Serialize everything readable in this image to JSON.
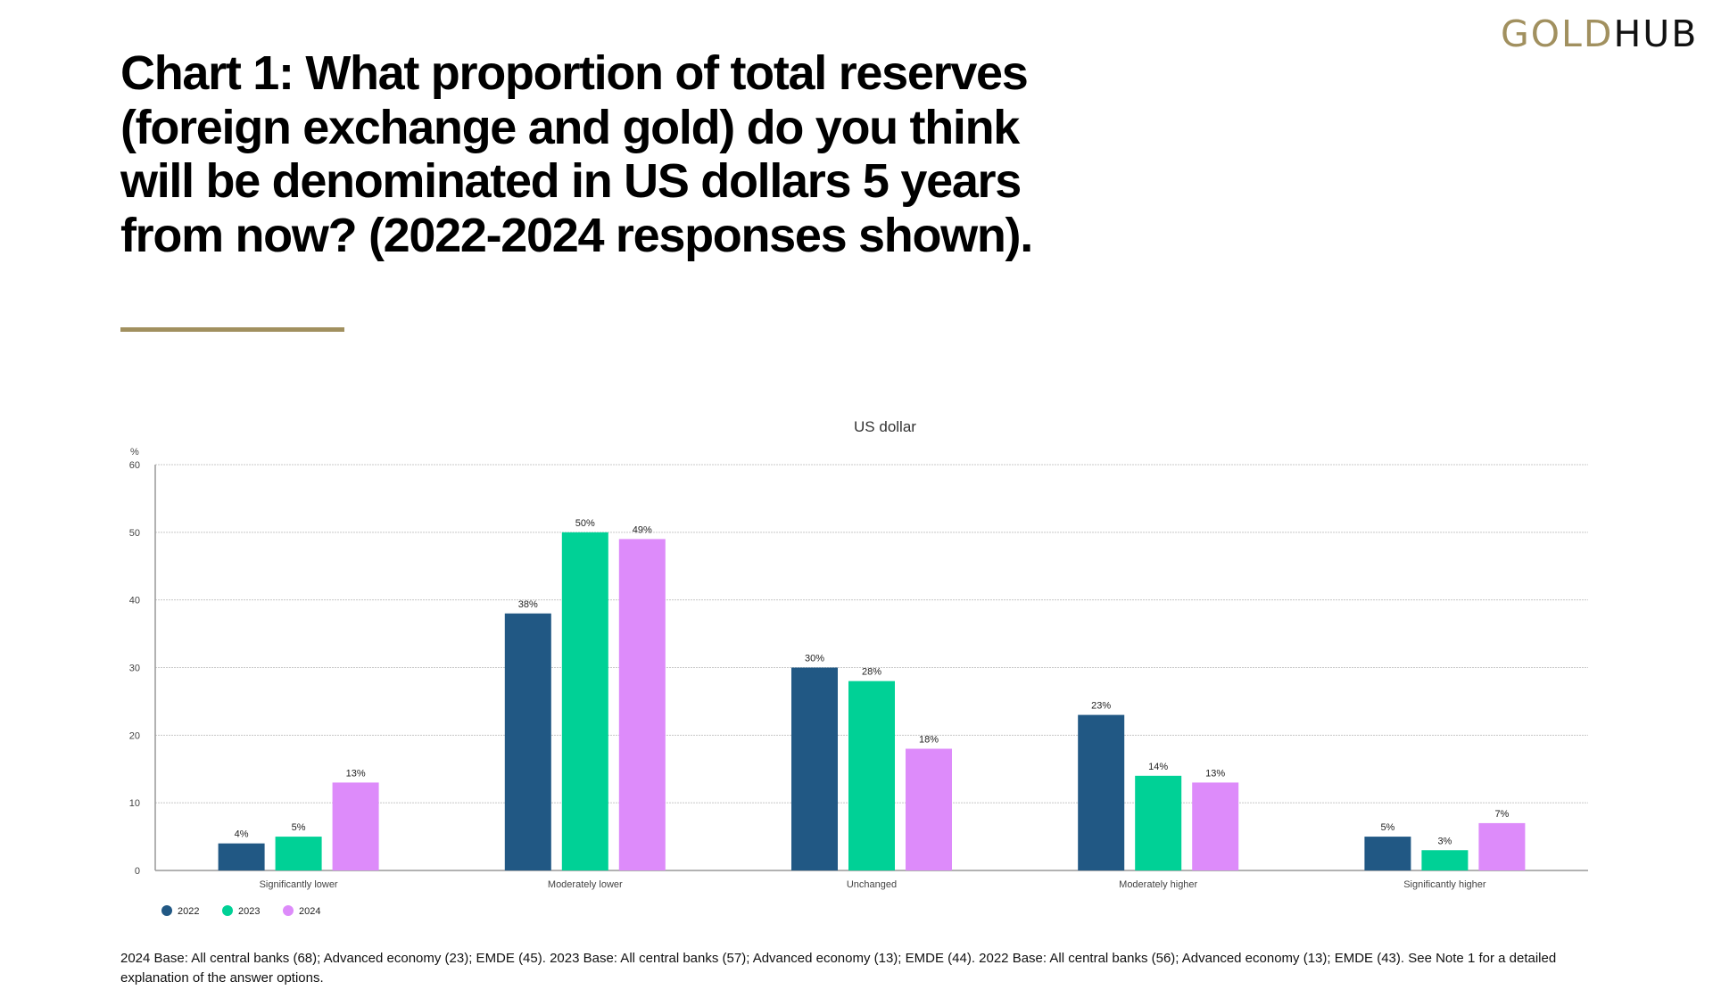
{
  "logo": {
    "part1": "GOLD",
    "part2": "HUB"
  },
  "title": "Chart 1: What proportion of total reserves (foreign exchange and gold) do you think will be denominated in US dollars 5 years from now? (2022-2024 responses shown).",
  "footnote": "2024 Base: All central banks (68); Advanced economy (23); EMDE (45). 2023 Base: All central banks (57); Advanced economy (13); EMDE (44). 2022 Base: All central banks (56); Advanced economy (13); EMDE (43). See Note 1 for a detailed explanation of the answer options.",
  "colors": {
    "accent_gold": "#a1905f",
    "series_2022": "#215884",
    "series_2023": "#00d196",
    "series_2024": "#dd8bfa"
  },
  "chart_data": {
    "type": "bar",
    "title": "US dollar",
    "xlabel": "",
    "ylabel": "%",
    "ylim": [
      0,
      60
    ],
    "yticks": [
      0,
      10,
      20,
      30,
      40,
      50,
      60
    ],
    "grid": true,
    "legend_position": "bottom-left",
    "categories": [
      "Significantly lower",
      "Moderately lower",
      "Unchanged",
      "Moderately higher",
      "Significantly higher"
    ],
    "series": [
      {
        "name": "2022",
        "color": "#215884",
        "values": [
          4,
          38,
          30,
          23,
          5
        ],
        "labels": [
          "4%",
          "38%",
          "30%",
          "23%",
          "5%"
        ]
      },
      {
        "name": "2023",
        "color": "#00d196",
        "values": [
          5,
          50,
          28,
          14,
          3
        ],
        "labels": [
          "5%",
          "50%",
          "28%",
          "14%",
          "3%"
        ]
      },
      {
        "name": "2024",
        "color": "#dd8bfa",
        "values": [
          13,
          49,
          18,
          13,
          7
        ],
        "labels": [
          "13%",
          "49%",
          "18%",
          "13%",
          "7%"
        ]
      }
    ]
  }
}
